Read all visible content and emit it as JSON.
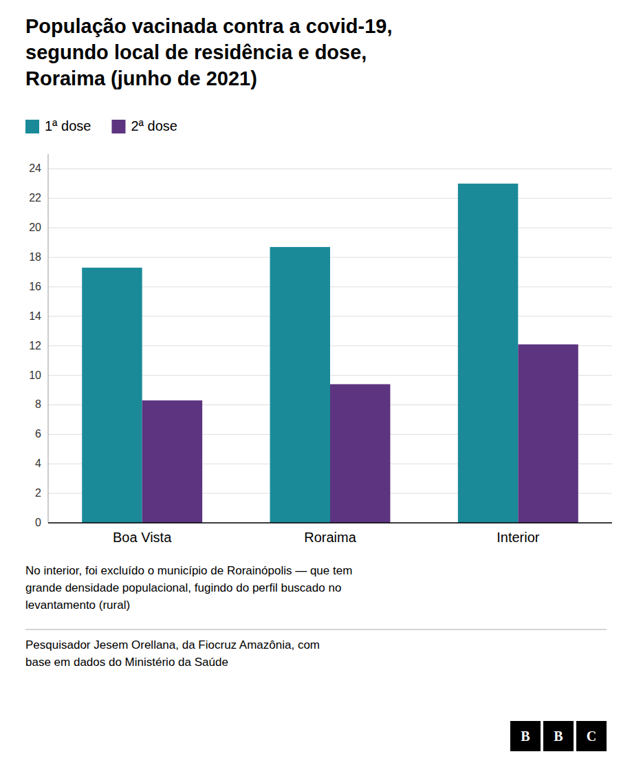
{
  "chart_data": {
    "type": "bar",
    "title": "População vacinada contra a covid-19,\nsegundo local de residência e dose,\nRoraima (junho de 2021)",
    "categories": [
      "Boa Vista",
      "Roraima",
      "Interior"
    ],
    "series": [
      {
        "name": "1ª dose",
        "color": "#1a8a99",
        "values": [
          17.3,
          18.7,
          23.0
        ]
      },
      {
        "name": "2ª dose",
        "color": "#5c3480",
        "values": [
          8.3,
          9.4,
          12.1
        ]
      }
    ],
    "ylim": [
      0,
      25
    ],
    "yticks": [
      0,
      2,
      4,
      6,
      8,
      10,
      12,
      14,
      16,
      18,
      20,
      22,
      24
    ],
    "grid": true,
    "legend": "top",
    "annotations": [
      "No interior, foi excluído o município de Rorainópolis — que tem\ngrande densidade populacional, fugindo do perfil buscado no\nlevantamento (rural)",
      "Pesquisador Jesem Orellana, da Fiocruz Amazônia, com\nbase em dados do Ministério da Saúde",
      "BBC"
    ]
  }
}
